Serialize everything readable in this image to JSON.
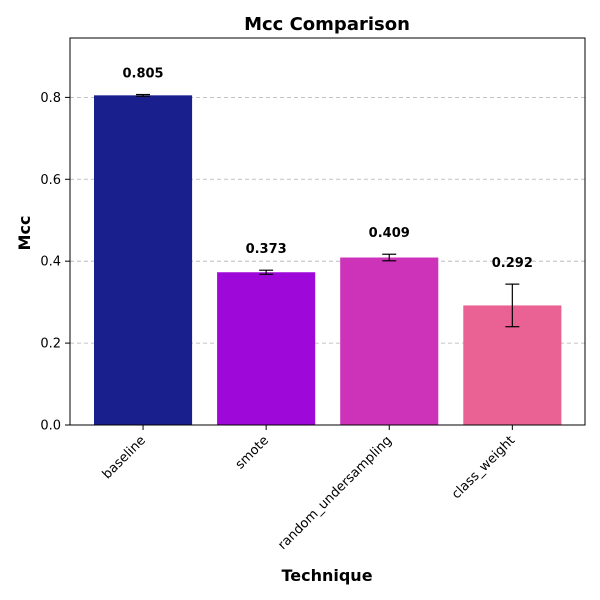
{
  "chart_data": {
    "type": "bar",
    "title": "Mcc Comparison",
    "xlabel": "Technique",
    "ylabel": "Mcc",
    "categories": [
      "baseline",
      "smote",
      "random_undersampling",
      "class_weight"
    ],
    "values": [
      0.805,
      0.373,
      0.409,
      0.292
    ],
    "value_labels": [
      "0.805",
      "0.373",
      "0.409",
      "0.292"
    ],
    "errors": [
      0.002,
      0.005,
      0.008,
      0.052
    ],
    "colors": [
      "#191f8c",
      "#9e08d8",
      "#cc33b8",
      "#ea6294"
    ],
    "ylim": [
      0,
      0.945
    ],
    "yticks": [
      0.0,
      0.2,
      0.4,
      0.6,
      0.8
    ],
    "ytick_labels": [
      "0.0",
      "0.2",
      "0.4",
      "0.6",
      "0.8"
    ],
    "grid": "y-dashed",
    "legend": "none"
  }
}
